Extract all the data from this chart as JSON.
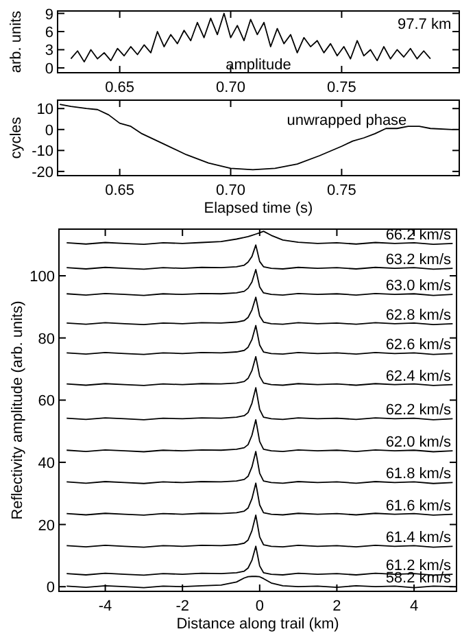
{
  "chart_data": [
    {
      "type": "line",
      "ylabel": "arb. units",
      "xlim": [
        0.622,
        0.803
      ],
      "ylim": [
        -0.8,
        9.4
      ],
      "xticks": [
        {
          "value": 0.65,
          "label": "0.65"
        },
        {
          "value": 0.7,
          "label": "0.70"
        },
        {
          "value": 0.75,
          "label": "0.75"
        }
      ],
      "yticks": [
        0,
        3,
        6,
        9
      ],
      "grid": false,
      "annotations": [
        "97.7 km",
        "amplitude"
      ],
      "series": [
        {
          "color": "#000000",
          "x": [
            0.628,
            0.631,
            0.634,
            0.637,
            0.64,
            0.643,
            0.646,
            0.649,
            0.652,
            0.655,
            0.658,
            0.661,
            0.664,
            0.667,
            0.67,
            0.673,
            0.676,
            0.679,
            0.682,
            0.685,
            0.688,
            0.691,
            0.694,
            0.697,
            0.7,
            0.703,
            0.706,
            0.709,
            0.712,
            0.715,
            0.718,
            0.721,
            0.724,
            0.727,
            0.73,
            0.733,
            0.736,
            0.739,
            0.742,
            0.745,
            0.748,
            0.751,
            0.754,
            0.757,
            0.76,
            0.763,
            0.766,
            0.769,
            0.772,
            0.775,
            0.778,
            0.781,
            0.784,
            0.787,
            0.79
          ],
          "values": [
            1.5,
            2.8,
            1,
            3,
            1.5,
            2.5,
            1.2,
            3.2,
            2,
            3.5,
            2.2,
            3.8,
            2.5,
            6,
            3.5,
            5.5,
            4,
            6.2,
            4.5,
            7.5,
            5,
            8.2,
            5.5,
            9,
            5,
            7,
            4.5,
            8,
            5.5,
            7.5,
            3.5,
            6.5,
            4,
            5.5,
            2.5,
            5,
            3.5,
            4.5,
            2.5,
            4,
            2,
            3.5,
            1.5,
            4.5,
            2,
            3,
            1.2,
            3.5,
            1.5,
            3,
            1.8,
            3.2,
            1.5,
            2.8,
            1.5
          ]
        }
      ]
    },
    {
      "type": "line",
      "xlabel": "Elapsed time (s)",
      "ylabel": "cycles",
      "xlim": [
        0.622,
        0.803
      ],
      "ylim": [
        -22,
        14
      ],
      "xticks": [
        {
          "value": 0.65,
          "label": "0.65"
        },
        {
          "value": 0.7,
          "label": "0.70"
        },
        {
          "value": 0.75,
          "label": "0.75"
        }
      ],
      "yticks": [
        -20,
        -10,
        0,
        10
      ],
      "grid": false,
      "annotations": [
        "unwrapped phase"
      ],
      "series": [
        {
          "color": "#000000",
          "x": [
            0.623,
            0.628,
            0.635,
            0.64,
            0.645,
            0.65,
            0.655,
            0.66,
            0.67,
            0.68,
            0.69,
            0.7,
            0.71,
            0.72,
            0.73,
            0.74,
            0.75,
            0.755,
            0.76,
            0.765,
            0.77,
            0.775,
            0.78,
            0.785,
            0.79,
            0.8
          ],
          "values": [
            12,
            11,
            10,
            9.5,
            7,
            3,
            1.5,
            -2,
            -7,
            -12,
            -16,
            -18.5,
            -19.2,
            -18.5,
            -16.5,
            -12.5,
            -8,
            -5.5,
            -4,
            -2,
            0.5,
            0.5,
            1.5,
            1.5,
            0.5,
            0
          ]
        }
      ]
    },
    {
      "type": "line",
      "xlabel": "Distance along trail (km)",
      "ylabel": "Reflectivity amplitude (arb. units)",
      "xlim": [
        -5.2,
        5.1
      ],
      "ylim": [
        -1.5,
        115
      ],
      "xticks": [
        -4,
        -2,
        0,
        2,
        4
      ],
      "yticks": [
        0,
        20,
        40,
        60,
        80,
        100
      ],
      "grid": false,
      "legend": "right",
      "x": [
        -5,
        -4.5,
        -4,
        -3.5,
        -3,
        -2.5,
        -2,
        -1.5,
        -1,
        -0.6,
        -0.4,
        -0.3,
        -0.2,
        -0.1,
        0,
        0.1,
        0.3,
        0.6,
        1,
        1.5,
        2,
        2.5,
        3,
        3.5,
        4,
        4.5,
        5
      ],
      "series": [
        {
          "name": "66.2 km/s",
          "color": "#000000",
          "values": [
            110.6,
            110.2,
            110.7,
            110.4,
            110.1,
            110.6,
            110.4,
            110.7,
            111,
            111.8,
            112.3,
            112.6,
            113,
            113.4,
            113.8,
            114.3,
            113,
            111.5,
            110.8,
            110.4,
            110.6,
            110.2,
            110.7,
            110.4,
            110.6,
            110.1,
            110.4
          ]
        },
        {
          "name": "63.2 km/s",
          "color": "#000000",
          "values": [
            102.6,
            102.2,
            102.7,
            102.4,
            102.1,
            102.6,
            102.4,
            102.7,
            102.6,
            102.9,
            103.4,
            104.4,
            106.2,
            109.9,
            104.6,
            102.9,
            102.4,
            102.2,
            102.7,
            102.4,
            102.6,
            102.2,
            102.7,
            102.4,
            102.6,
            102.1,
            102.4
          ]
        },
        {
          "name": "63.0 km/s",
          "color": "#000000",
          "values": [
            94.2,
            93.8,
            94.3,
            94,
            93.7,
            94.2,
            94,
            94.3,
            94.2,
            94.5,
            95,
            96,
            98,
            102,
            96.4,
            94.5,
            94,
            93.8,
            94.3,
            94,
            94.2,
            93.8,
            94.3,
            94,
            94.2,
            93.7,
            94
          ]
        },
        {
          "name": "62.8 km/s",
          "color": "#000000",
          "values": [
            84.8,
            84.4,
            84.9,
            84.6,
            84.3,
            84.8,
            84.6,
            84.9,
            84.8,
            85.1,
            85.6,
            86.6,
            89,
            93.1,
            87.1,
            85.1,
            84.6,
            84.4,
            84.9,
            84.6,
            84.8,
            84.4,
            84.9,
            84.6,
            84.8,
            84.3,
            84.6
          ]
        },
        {
          "name": "62.6 km/s",
          "color": "#000000",
          "values": [
            75.2,
            74.8,
            75.3,
            75,
            74.7,
            75.2,
            75,
            75.3,
            75.2,
            75.5,
            76,
            77,
            79.5,
            84,
            77.7,
            75.5,
            75,
            74.8,
            75.3,
            75,
            75.2,
            74.8,
            75.3,
            75,
            75.2,
            74.7,
            75
          ]
        },
        {
          "name": "62.4 km/s",
          "color": "#000000",
          "values": [
            65.2,
            64.8,
            65.3,
            65,
            64.7,
            65.2,
            65,
            65.3,
            65.2,
            65.5,
            66,
            67,
            69.5,
            74,
            67.7,
            65.5,
            65,
            64.8,
            65.3,
            65,
            65.2,
            64.8,
            65.3,
            65,
            65.2,
            64.7,
            65
          ]
        },
        {
          "name": "62.2 km/s",
          "color": "#000000",
          "values": [
            54.2,
            53.8,
            54.3,
            54,
            53.7,
            54.2,
            54,
            54.3,
            54.2,
            54.5,
            55,
            56,
            59,
            64,
            57,
            54.5,
            54,
            53.8,
            54.3,
            54,
            54.2,
            53.8,
            54.3,
            54,
            54.2,
            53.7,
            54
          ]
        },
        {
          "name": "62.0 km/s",
          "color": "#000000",
          "values": [
            43.9,
            43.5,
            44,
            43.7,
            43.4,
            43.9,
            43.7,
            44,
            43.9,
            44.2,
            44.7,
            45.7,
            48.7,
            53.7,
            46.7,
            44.2,
            43.7,
            43.5,
            44,
            43.7,
            43.9,
            43.5,
            44,
            43.7,
            43.9,
            43.4,
            43.7
          ]
        },
        {
          "name": "61.8 km/s",
          "color": "#000000",
          "values": [
            33.7,
            33.3,
            33.8,
            33.5,
            33.2,
            33.7,
            33.5,
            33.8,
            33.7,
            34,
            34.5,
            35.5,
            38.5,
            43.5,
            36.5,
            34,
            33.5,
            33.3,
            33.8,
            33.5,
            33.7,
            33.3,
            33.8,
            33.5,
            33.7,
            33.2,
            33.5
          ]
        },
        {
          "name": "61.6 km/s",
          "color": "#000000",
          "values": [
            23.5,
            23.1,
            23.6,
            23.3,
            23,
            23.5,
            23.3,
            23.6,
            23.5,
            23.8,
            24.3,
            25.3,
            28.3,
            33.3,
            26.3,
            23.8,
            23.3,
            23.1,
            23.6,
            23.3,
            23.5,
            23.1,
            23.6,
            23.3,
            23.5,
            23,
            23.3
          ]
        },
        {
          "name": "61.4 km/s",
          "color": "#000000",
          "values": [
            13.2,
            12.8,
            13.3,
            13,
            12.7,
            13.2,
            13,
            13.3,
            13.2,
            13.5,
            14,
            15,
            18,
            23,
            16,
            13.5,
            13,
            12.8,
            13.3,
            13,
            13.2,
            12.8,
            13.3,
            13,
            13.2,
            12.7,
            13
          ]
        },
        {
          "name": "61.2 km/s",
          "color": "#000000",
          "values": [
            4.2,
            3.8,
            4.3,
            4,
            3.7,
            4.2,
            4,
            4.3,
            4.2,
            4.5,
            5,
            6,
            8.5,
            13,
            6.7,
            4.5,
            4,
            3.8,
            4.3,
            4,
            4.2,
            3.8,
            4.3,
            4,
            4.2,
            3.7,
            4
          ]
        },
        {
          "name": "58.2 km/s",
          "color": "#000000",
          "values": [
            0.2,
            -0.2,
            0.3,
            0,
            -0.3,
            0.2,
            0,
            0.3,
            0.5,
            1.5,
            2.8,
            3.2,
            3.3,
            3.3,
            3.2,
            2.6,
            1.2,
            0.3,
            0,
            0.2,
            -0.2,
            0.3,
            0,
            0.2,
            -0.3,
            0.2,
            0
          ]
        }
      ]
    }
  ]
}
